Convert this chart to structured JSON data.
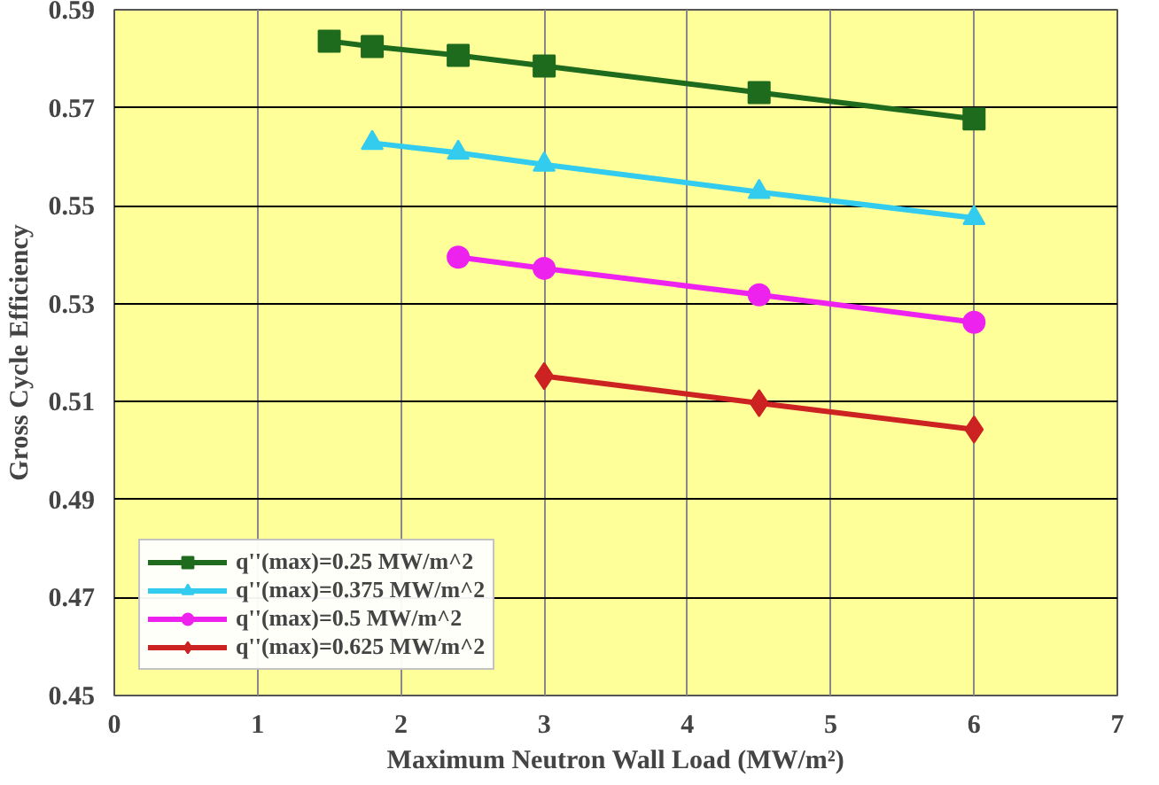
{
  "chart_data": {
    "type": "line",
    "xlabel": "Maximum Neutron Wall Load (MW/m²)",
    "ylabel": "Gross Cycle Efficiency",
    "xlim": [
      0,
      7
    ],
    "xticks": [
      0,
      1,
      2,
      3,
      4,
      5,
      6,
      7
    ],
    "ylim": [
      0.45,
      0.59
    ],
    "yticks": [
      0.45,
      0.47,
      0.49,
      0.51,
      0.53,
      0.55,
      0.57,
      0.59
    ],
    "grid": true,
    "legend": "bottom left",
    "series": [
      {
        "name": "q''(max)=0.25 MW/m^2",
        "color": "#1e6b1e",
        "marker": "square",
        "x": [
          1.5,
          1.8,
          2.4,
          3,
          4.5,
          6
        ],
        "values": [
          0.5836,
          0.5825,
          0.5807,
          0.5785,
          0.5731,
          0.5677
        ]
      },
      {
        "name": "q''(max)=0.375 MW/m^2",
        "color": "#33ccee",
        "marker": "triangle",
        "x": [
          1.8,
          2.4,
          3,
          4.5,
          6
        ],
        "values": [
          0.5628,
          0.5608,
          0.5584,
          0.5528,
          0.5475
        ]
      },
      {
        "name": "q''(max)=0.5 MW/m^2",
        "color": "#ee22ee",
        "marker": "circle",
        "x": [
          2.4,
          3,
          4.5,
          6
        ],
        "values": [
          0.5395,
          0.5372,
          0.5318,
          0.5262
        ]
      },
      {
        "name": "q''(max)=0.625 MW/m^2",
        "color": "#cc2222",
        "marker": "diamond",
        "x": [
          3,
          4.5,
          6
        ],
        "values": [
          0.5152,
          0.5097,
          0.5043
        ]
      }
    ]
  }
}
